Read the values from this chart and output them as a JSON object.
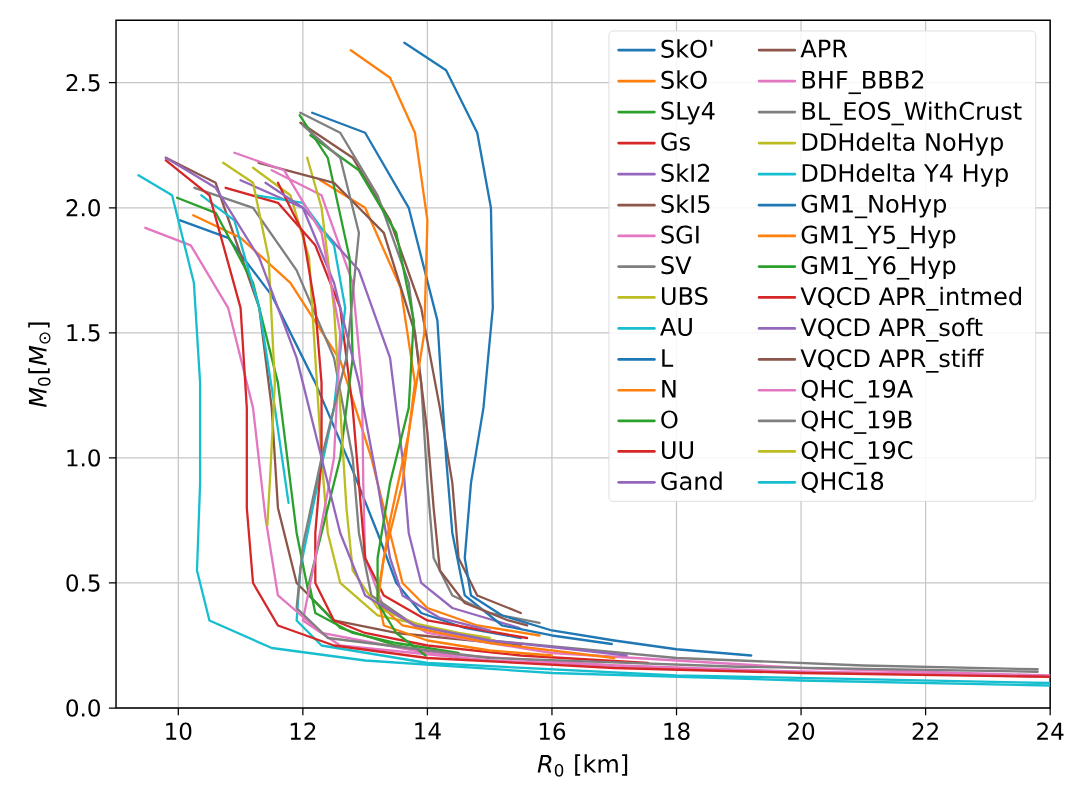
{
  "chart_data": {
    "type": "line",
    "xlabel": "*R*$_{0}$ [km]",
    "ylabel": "*M*$_{0}$[*M*$_{⊙}$]",
    "xlim": [
      9,
      24
    ],
    "ylim": [
      0,
      2.75
    ],
    "xticks": [
      10,
      12,
      14,
      16,
      18,
      20,
      22,
      24
    ],
    "yticks": [
      {
        "value": 0,
        "label": "0.0"
      },
      0.5,
      {
        "value": 1,
        "label": "1.0"
      },
      1.5,
      {
        "value": 2,
        "label": "2.0"
      },
      2.5
    ],
    "grid": true,
    "legend": "top right",
    "series": [
      {
        "name": "SkO'",
        "color": "#1f77b4",
        "x": [
          10.03,
          10.8,
          11.5,
          12.2,
          12.8,
          13.2,
          13.5,
          13.9,
          14.6,
          15.5
        ],
        "values": [
          1.95,
          1.88,
          1.65,
          1.3,
          0.95,
          0.7,
          0.5,
          0.38,
          0.32,
          0.28
        ]
      },
      {
        "name": "SkO",
        "color": "#ff7f0e",
        "x": [
          10.24,
          11,
          11.8,
          12.6,
          13.1,
          13.4,
          13.6,
          14,
          14.8,
          15.8
        ],
        "values": [
          1.97,
          1.88,
          1.7,
          1.39,
          1.0,
          0.7,
          0.5,
          0.4,
          0.33,
          0.29
        ]
      },
      {
        "name": "SLy4",
        "color": "#2ca02c",
        "x": [
          9.98,
          10.6,
          11.2,
          11.6,
          11.75,
          11.9,
          12.1,
          12.6,
          13.5,
          14.5
        ],
        "values": [
          2.04,
          1.98,
          1.7,
          1.3,
          1.0,
          0.7,
          0.45,
          0.32,
          0.25,
          0.2
        ]
      },
      {
        "name": "Gs",
        "color": "#d62728",
        "x": [
          10.76,
          11.6,
          12.2,
          12.6,
          12.8,
          12.9,
          13.0,
          13.3,
          14,
          15.6
        ],
        "values": [
          2.08,
          2.02,
          1.85,
          1.6,
          1.2,
          0.9,
          0.6,
          0.45,
          0.35,
          0.28
        ]
      },
      {
        "name": "SkI2",
        "color": "#9467bd",
        "x": [
          11.0,
          12.0,
          12.9,
          13.4,
          13.6,
          13.7,
          13.9,
          14.4,
          15.48
        ],
        "values": [
          2.11,
          2.0,
          1.75,
          1.4,
          1.0,
          0.7,
          0.5,
          0.4,
          0.32
        ]
      },
      {
        "name": "SkI5",
        "color": "#8c564b",
        "x": [
          11.96,
          12.8,
          13.4,
          13.9,
          14.2,
          14.4,
          14.5,
          14.8,
          15.5
        ],
        "values": [
          2.34,
          2.2,
          1.95,
          1.6,
          1.2,
          0.9,
          0.6,
          0.45,
          0.38
        ]
      },
      {
        "name": "SGI",
        "color": "#e377c2",
        "x": [
          9.47,
          10.2,
          10.8,
          11.2,
          11.4,
          11.6,
          12.3,
          14,
          17,
          20,
          23.9
        ],
        "values": [
          1.92,
          1.85,
          1.6,
          1.2,
          0.76,
          0.45,
          0.3,
          0.22,
          0.17,
          0.145,
          0.13
        ]
      },
      {
        "name": "SV",
        "color": "#7f7f7f",
        "x": [
          11.96,
          12.6,
          13.2,
          13.7,
          13.9,
          14.0,
          14.1,
          14.4,
          15,
          15.8
        ],
        "values": [
          2.38,
          2.3,
          2.05,
          1.7,
          1.3,
          0.9,
          0.6,
          0.45,
          0.38,
          0.34
        ]
      },
      {
        "name": "UBS",
        "color": "#bcbd22",
        "x": [
          12.07,
          12.3,
          12.5,
          12.6,
          12.7,
          12.8,
          13.2,
          14,
          15.07
        ],
        "values": [
          2.2,
          2.0,
          1.6,
          1.2,
          0.8,
          0.55,
          0.4,
          0.32,
          0.27
        ]
      },
      {
        "name": "AU",
        "color": "#17becf",
        "x": [
          10.37,
          10.9,
          11.3,
          11.55,
          11.77
        ],
        "values": [
          2.05,
          1.95,
          1.6,
          1.2,
          0.82
        ]
      },
      {
        "name": "L",
        "color": "#1f77b4",
        "x": [
          13.63,
          14.3,
          14.8,
          15.02,
          15.05,
          14.9,
          14.7,
          14.6,
          14.7,
          15.2,
          16,
          17,
          18,
          19.2
        ],
        "values": [
          2.66,
          2.55,
          2.3,
          2.0,
          1.6,
          1.2,
          0.9,
          0.6,
          0.45,
          0.37,
          0.31,
          0.27,
          0.235,
          0.21
        ]
      },
      {
        "name": "N",
        "color": "#ff7f0e",
        "x": [
          12.77,
          13.4,
          13.8,
          14.0,
          13.95,
          13.7,
          13.4,
          13.2,
          13.3,
          14,
          15,
          16
        ],
        "values": [
          2.63,
          2.52,
          2.3,
          1.95,
          1.5,
          1.1,
          0.75,
          0.45,
          0.33,
          0.27,
          0.23,
          0.21
        ]
      },
      {
        "name": "O",
        "color": "#2ca02c",
        "x": [
          12.12,
          12.9,
          13.5,
          13.78,
          13.7,
          13.4,
          13.2,
          13.2,
          13.5,
          13.97
        ],
        "values": [
          2.29,
          2.15,
          1.9,
          1.55,
          1.2,
          0.9,
          0.6,
          0.42,
          0.3,
          0.21
        ]
      },
      {
        "name": "UU",
        "color": "#d62728",
        "x": [
          9.8,
          10.5,
          11.0,
          11.1,
          11.1,
          11.2,
          11.6,
          12.5,
          14,
          17,
          20,
          24
        ],
        "values": [
          2.19,
          2.05,
          1.6,
          1.2,
          0.8,
          0.5,
          0.33,
          0.25,
          0.2,
          0.16,
          0.14,
          0.125
        ]
      },
      {
        "name": "Gand",
        "color": "#9467bd",
        "x": [
          9.8,
          10.6,
          11.3,
          11.9,
          12.3,
          12.6,
          13.0,
          13.8,
          15,
          16.5,
          17.2
        ],
        "values": [
          2.2,
          2.08,
          1.8,
          1.4,
          1.0,
          0.7,
          0.45,
          0.33,
          0.27,
          0.23,
          0.21
        ]
      },
      {
        "name": "APR",
        "color": "#8c564b",
        "x": [
          9.8,
          10.6,
          11.3,
          11.5,
          11.6,
          11.9,
          12.5,
          13.5,
          15.5
        ],
        "values": [
          2.2,
          2.1,
          1.6,
          1.2,
          0.8,
          0.5,
          0.35,
          0.3,
          0.25
        ]
      },
      {
        "name": "BHF_BBB2",
        "color": "#e377c2",
        "x": [
          11.5,
          12.3,
          12.8,
          12.95,
          12.97,
          13.0,
          13.3,
          14,
          16,
          20,
          24
        ],
        "values": [
          2.15,
          2.05,
          1.7,
          1.3,
          0.9,
          0.6,
          0.4,
          0.3,
          0.22,
          0.16,
          0.13
        ]
      },
      {
        "name": "BL_EOS_WithCrust",
        "color": "#7f7f7f",
        "x": [
          10.26,
          11.2,
          11.9,
          12.5,
          12.8,
          12.9,
          13.1,
          13.8,
          15,
          18,
          21,
          23.8
        ],
        "values": [
          2.08,
          2.0,
          1.75,
          1.4,
          1.0,
          0.7,
          0.45,
          0.33,
          0.27,
          0.2,
          0.17,
          0.155
        ]
      },
      {
        "name": "DDHdelta NoHyp",
        "color": "#bcbd22",
        "x": [
          11.2,
          11.8,
          12.1,
          12.2,
          12.3,
          12.4,
          12.6,
          13.2,
          14.5,
          15.0
        ],
        "values": [
          2.16,
          2.05,
          1.8,
          1.4,
          1.0,
          0.7,
          0.5,
          0.37,
          0.3,
          0.28
        ]
      },
      {
        "name": "DDHdelta Y4 Hyp",
        "color": "#17becf",
        "x": [
          11.25,
          12.0,
          12.5,
          12.68,
          12.5,
          12.2,
          11.96,
          11.9,
          12.3,
          14,
          18,
          24
        ],
        "values": [
          2.05,
          2.02,
          1.85,
          1.6,
          1.2,
          0.85,
          0.56,
          0.35,
          0.25,
          0.18,
          0.13,
          0.1
        ]
      },
      {
        "name": "GM1_NoHyp",
        "color": "#1f77b4",
        "x": [
          12.15,
          13.0,
          13.7,
          14.16,
          14.3,
          14.4,
          14.6,
          15.2,
          16,
          16.96
        ],
        "values": [
          2.38,
          2.3,
          2.0,
          1.55,
          1.0,
          0.7,
          0.45,
          0.33,
          0.29,
          0.256
        ]
      },
      {
        "name": "GM1_Y5_Hyp",
        "color": "#ff7f0e",
        "x": [
          12.28,
          13.0,
          13.57,
          13.8,
          13.6,
          13.3,
          13.2,
          13.6,
          15,
          17
        ],
        "values": [
          2.11,
          2.0,
          1.68,
          1.3,
          0.9,
          0.6,
          0.42,
          0.33,
          0.26,
          0.2
        ]
      },
      {
        "name": "GM1_Y6_Hyp",
        "color": "#2ca02c",
        "x": [
          11.95,
          12.4,
          12.75,
          12.8,
          12.6,
          12.3,
          12.1,
          12.2,
          12.8,
          13.5,
          14.5
        ],
        "values": [
          2.37,
          2.2,
          1.8,
          1.4,
          1.0,
          0.7,
          0.5,
          0.38,
          0.3,
          0.26,
          0.22
        ]
      },
      {
        "name": "VQCD APR_intmed",
        "color": "#d62728",
        "x": [
          11.6,
          12.0,
          12.2,
          12.3,
          12.3,
          12.2,
          12.2,
          12.5,
          13,
          14,
          15.5,
          17.54
        ],
        "values": [
          2.1,
          1.9,
          1.6,
          1.3,
          1.0,
          0.7,
          0.5,
          0.35,
          0.3,
          0.25,
          0.21,
          0.18
        ]
      },
      {
        "name": "VQCD APR_soft",
        "color": "#9467bd",
        "x": [
          11.4,
          12.0,
          12.5,
          12.9,
          13.2,
          13.4,
          13.6,
          14.2,
          15
        ],
        "values": [
          2.1,
          2.0,
          1.7,
          1.3,
          0.9,
          0.6,
          0.45,
          0.36,
          0.31
        ]
      },
      {
        "name": "VQCD APR_stiff",
        "color": "#8c564b",
        "x": [
          11.29,
          12.5,
          13.3,
          13.8,
          14.0,
          14.1,
          14.2,
          14.6,
          15.3,
          15.6
        ],
        "values": [
          2.18,
          2.1,
          1.9,
          1.5,
          1.1,
          0.8,
          0.55,
          0.42,
          0.35,
          0.33
        ]
      },
      {
        "name": "QHC_19A",
        "color": "#e377c2",
        "x": [
          10.9,
          11.7,
          12.3,
          12.6,
          12.5,
          12.2,
          12.0,
          12.6,
          15,
          19,
          24
        ],
        "values": [
          2.22,
          2.15,
          1.9,
          1.5,
          1.0,
          0.6,
          0.35,
          0.25,
          0.19,
          0.15,
          0.125
        ]
      },
      {
        "name": "QHC_19B",
        "color": "#7f7f7f",
        "x": [
          12.0,
          12.6,
          12.9,
          12.7,
          12.3,
          12.0,
          11.9,
          12.4,
          15,
          19,
          23.8
        ],
        "values": [
          2.33,
          2.2,
          1.9,
          1.4,
          1.0,
          0.65,
          0.4,
          0.28,
          0.2,
          0.165,
          0.145
        ]
      },
      {
        "name": "QHC_19C",
        "color": "#bcbd22",
        "x": [
          10.72,
          11.2,
          11.45,
          11.55,
          11.48,
          11.43
        ],
        "values": [
          2.18,
          2.1,
          1.8,
          1.3,
          0.95,
          0.73
        ]
      },
      {
        "name": "QHC18",
        "color": "#17becf",
        "x": [
          9.36,
          9.9,
          10.25,
          10.35,
          10.35,
          10.3,
          10.5,
          11.5,
          13,
          16,
          20,
          24
        ],
        "values": [
          2.13,
          2.05,
          1.7,
          1.3,
          0.9,
          0.55,
          0.35,
          0.24,
          0.19,
          0.14,
          0.11,
          0.09
        ]
      }
    ]
  }
}
